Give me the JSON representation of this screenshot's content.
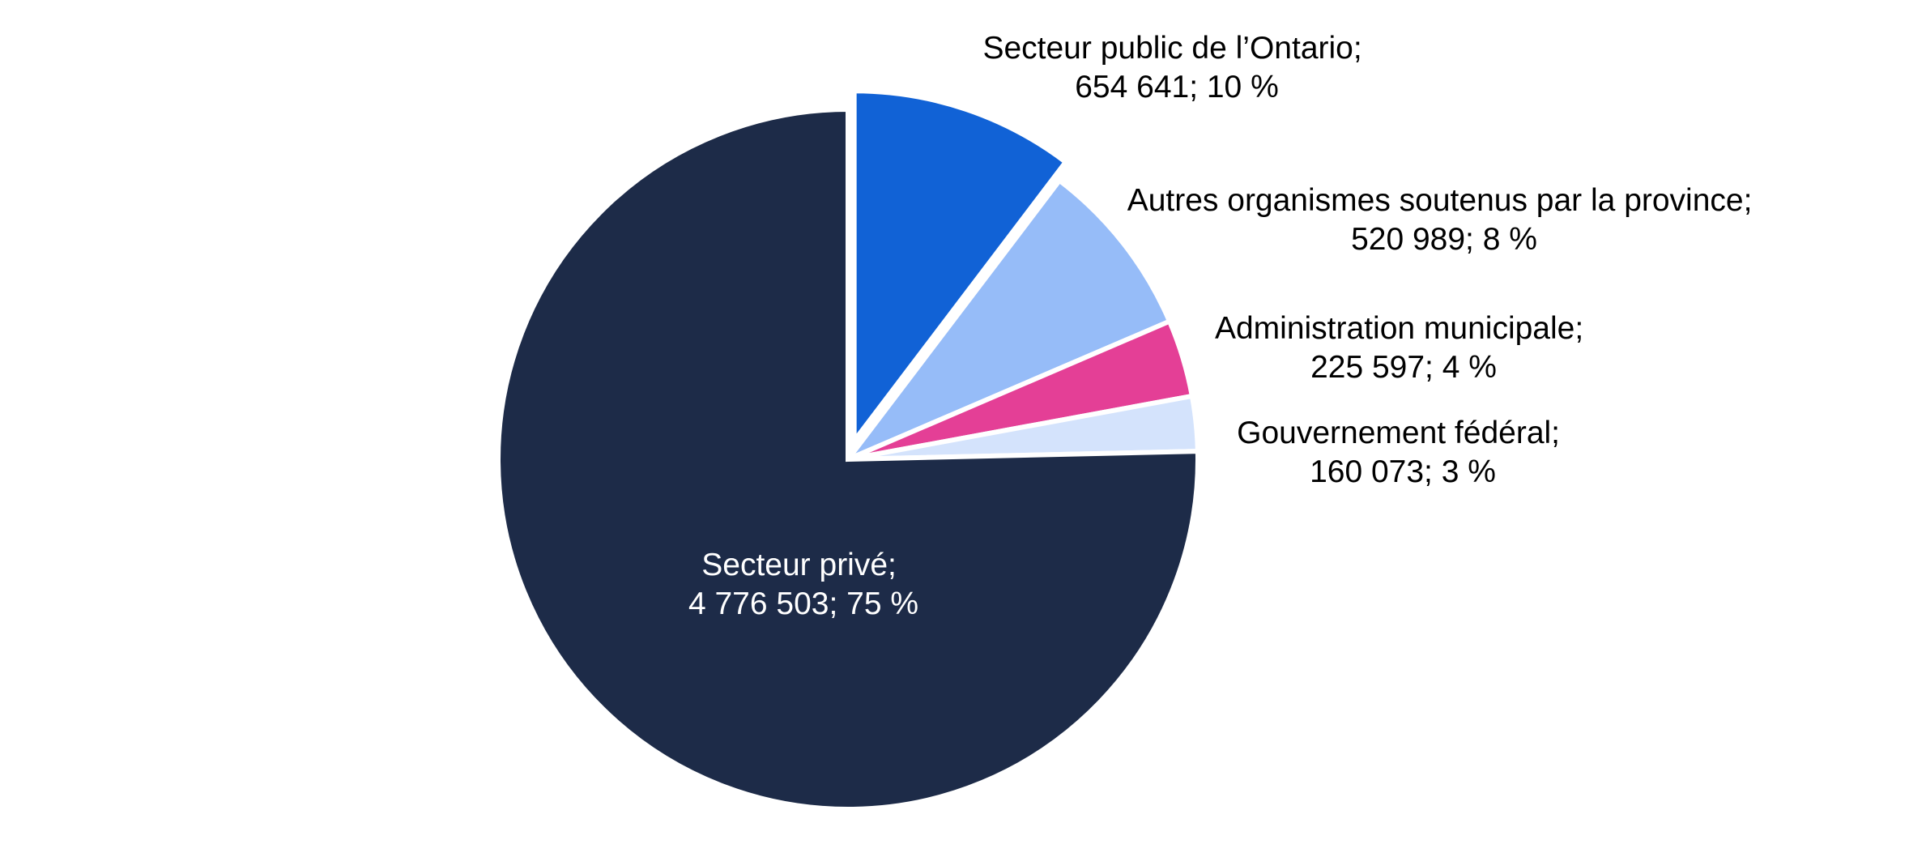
{
  "chart_data": {
    "type": "pie",
    "title": "",
    "slices": [
      {
        "label": "Secteur public de l’Ontario;",
        "value_text": "654 641; 10 %",
        "value": 654641,
        "percent": 10,
        "color": "#1162D6",
        "exploded": true
      },
      {
        "label": "Autres organismes soutenus par la province;",
        "value_text": "520 989; 8 %",
        "value": 520989,
        "percent": 8,
        "color": "#96BCF8",
        "exploded": false
      },
      {
        "label": "Administration municipale;",
        "value_text": "225 597; 4 %",
        "value": 225597,
        "percent": 4,
        "color": "#E43F96",
        "exploded": false
      },
      {
        "label": "Gouvernement fédéral;",
        "value_text": "160 073; 3 %",
        "value": 160073,
        "percent": 3,
        "color": "#D4E3FC",
        "exploded": false
      },
      {
        "label": "Secteur privé;",
        "value_text": "4 776 503; 75 %",
        "value": 4776503,
        "percent": 75,
        "color": "#1D2B48",
        "exploded": false
      }
    ],
    "label_colors": {
      "dark": "#000000",
      "light": "#ffffff"
    }
  }
}
